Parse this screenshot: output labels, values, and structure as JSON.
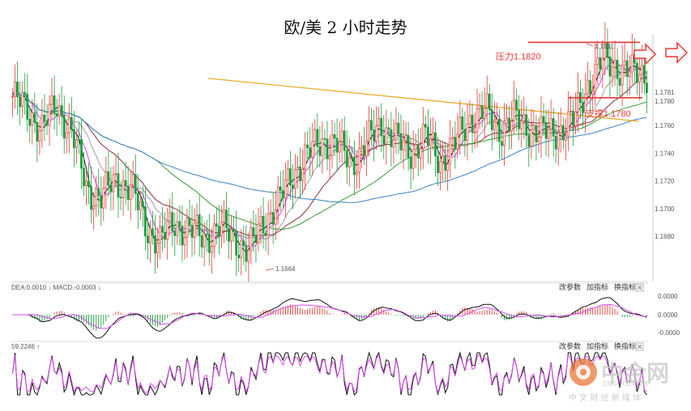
{
  "title": "欧/美 2 小时走势",
  "chart_data": {
    "type": "candlestick",
    "title": "欧/美 2 小时走势",
    "y_ticks": [
      "1.1781",
      "1.1780",
      "1.1760",
      "1.1740",
      "1.1720",
      "1.1700",
      "1.1680"
    ],
    "y_tick_values": [
      1.1781,
      1.178,
      1.176,
      1.174,
      1.172,
      1.17,
      1.168
    ],
    "ylim": [
      1.1652,
      1.1826
    ],
    "annotations": {
      "resistance_label": "压力1.1820",
      "resistance_value": 1.182,
      "support_label": "支撑1.1780",
      "support_value": 1.178,
      "high_label": "1.1811",
      "low_label": "1.1664"
    },
    "macd_panel": {
      "legend": "DEA:0.0010 ↓ MACD:-0.0003 ↓",
      "y_ticks": [
        "0.0000",
        "0.0000",
        "-0.0000"
      ],
      "buttons": [
        "改参数",
        "加指标",
        "换指标"
      ]
    },
    "kdj_panel": {
      "legend": "59.2246",
      "buttons": [
        "改参数",
        "加指标",
        "换指标"
      ]
    }
  },
  "watermark": {
    "brand": "中金网",
    "domain": "CNGOLD.COM",
    "tagline": "中 文 财 经 新 媒 体"
  }
}
